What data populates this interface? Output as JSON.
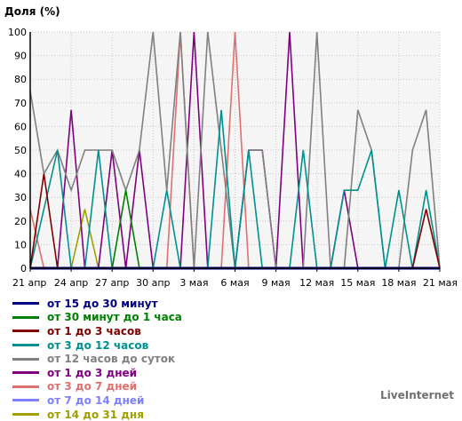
{
  "chart_data": {
    "type": "line",
    "title": "Доля (%)",
    "xlabel": "",
    "ylabel": "",
    "ylim": [
      0,
      100
    ],
    "yticks": [
      0,
      10,
      20,
      30,
      40,
      50,
      60,
      70,
      80,
      90,
      100
    ],
    "grid": true,
    "legend_position": "bottom-left",
    "x": [
      "21 апр",
      "22 апр",
      "23 апр",
      "24 апр",
      "25 апр",
      "26 апр",
      "27 апр",
      "28 апр",
      "29 апр",
      "30 апр",
      "1 мая",
      "2 мая",
      "3 мая",
      "4 мая",
      "5 мая",
      "6 мая",
      "7 мая",
      "8 мая",
      "9 мая",
      "10 мая",
      "11 мая",
      "12 мая",
      "13 мая",
      "14 мая",
      "15 мая",
      "16 мая",
      "17 мая",
      "18 мая",
      "19 мая",
      "20 мая",
      "21 мая"
    ],
    "xtick_labels": [
      "21 апр",
      "24 апр",
      "27 апр",
      "30 апр",
      "3 мая",
      "6 мая",
      "9 мая",
      "12 мая",
      "15 мая",
      "18 мая",
      "21 мая"
    ],
    "xtick_index": [
      0,
      3,
      6,
      9,
      12,
      15,
      18,
      21,
      24,
      27,
      30
    ],
    "series": [
      {
        "name": "от 15 до 30 минут",
        "color": "#000080",
        "values": [
          0,
          0,
          0,
          0,
          0,
          0,
          0,
          0,
          0,
          0,
          0,
          0,
          0,
          0,
          0,
          0,
          0,
          0,
          0,
          0,
          0,
          0,
          0,
          0,
          0,
          0,
          0,
          0,
          0,
          0,
          0
        ]
      },
      {
        "name": "от 30 минут до 1 часа",
        "color": "#008000",
        "values": [
          0,
          0,
          0,
          0,
          0,
          0,
          0,
          33,
          0,
          0,
          0,
          0,
          0,
          0,
          0,
          0,
          0,
          0,
          0,
          0,
          0,
          0,
          0,
          0,
          0,
          0,
          0,
          0,
          0,
          0,
          0
        ]
      },
      {
        "name": "от 1 до 3 часов",
        "color": "#800000",
        "values": [
          0,
          40,
          0,
          0,
          0,
          0,
          0,
          0,
          0,
          0,
          0,
          0,
          0,
          0,
          0,
          0,
          0,
          0,
          0,
          0,
          0,
          0,
          0,
          0,
          0,
          0,
          0,
          0,
          0,
          25,
          0
        ]
      },
      {
        "name": "от 3 до 12 часов",
        "color": "#009090",
        "values": [
          0,
          25,
          50,
          0,
          0,
          50,
          0,
          0,
          0,
          0,
          33,
          0,
          0,
          0,
          67,
          0,
          50,
          0,
          0,
          0,
          50,
          0,
          0,
          33,
          33,
          50,
          0,
          33,
          0,
          33,
          0
        ]
      },
      {
        "name": "от 12 часов до суток",
        "color": "#808080",
        "values": [
          75,
          40,
          50,
          33,
          50,
          50,
          50,
          33,
          50,
          100,
          33,
          100,
          0,
          100,
          50,
          0,
          50,
          50,
          0,
          0,
          0,
          100,
          0,
          0,
          67,
          50,
          0,
          0,
          50,
          67,
          0
        ]
      },
      {
        "name": "от 1 до 3 дней",
        "color": "#800080",
        "values": [
          0,
          0,
          0,
          67,
          0,
          0,
          50,
          0,
          50,
          0,
          0,
          0,
          100,
          0,
          0,
          0,
          50,
          50,
          0,
          100,
          0,
          0,
          0,
          33,
          0,
          0,
          0,
          0,
          0,
          0,
          0
        ]
      },
      {
        "name": "от 3 до 7 дней",
        "color": "#e07070",
        "values": [
          25,
          0,
          0,
          0,
          0,
          0,
          0,
          0,
          0,
          0,
          0,
          100,
          0,
          0,
          0,
          100,
          0,
          0,
          0,
          0,
          0,
          0,
          0,
          0,
          0,
          0,
          0,
          0,
          0,
          0,
          0
        ]
      },
      {
        "name": "от 7 до 14 дней",
        "color": "#8080ff",
        "values": [
          0,
          0,
          0,
          0,
          0,
          0,
          0,
          0,
          0,
          0,
          0,
          0,
          0,
          0,
          0,
          0,
          0,
          0,
          0,
          0,
          0,
          0,
          0,
          0,
          0,
          0,
          0,
          0,
          0,
          0,
          0
        ]
      },
      {
        "name": "от 14 до 31 дня",
        "color": "#a0a000",
        "values": [
          0,
          0,
          0,
          0,
          25,
          0,
          0,
          0,
          0,
          0,
          0,
          0,
          0,
          0,
          0,
          0,
          0,
          0,
          0,
          0,
          0,
          0,
          0,
          0,
          0,
          0,
          0,
          0,
          0,
          0,
          0
        ]
      }
    ]
  },
  "brand": "LiveInternet"
}
